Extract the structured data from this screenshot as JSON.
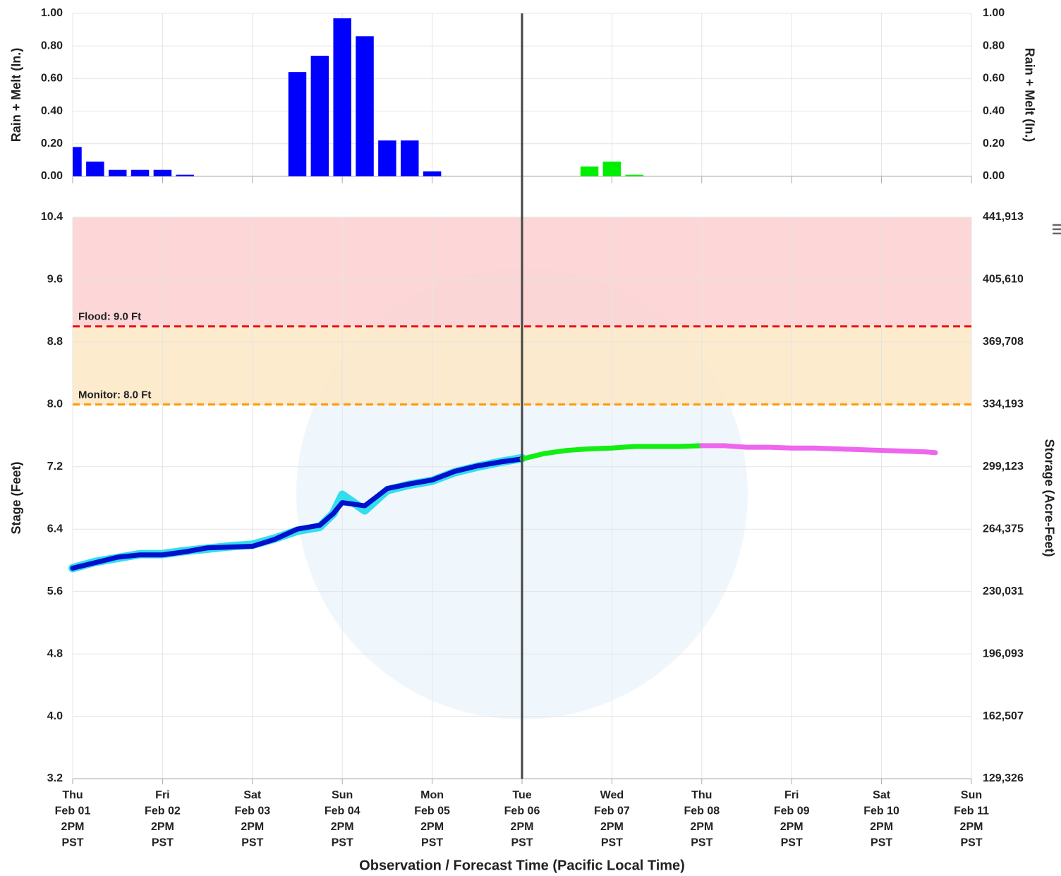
{
  "chart_data": [
    {
      "type": "bar",
      "ylabel": "Rain + Melt (In.)",
      "y2label": "Rain + Melt (In.)",
      "xlim": [
        0,
        10
      ],
      "xticks": [
        0,
        1,
        2,
        3,
        4,
        5,
        6,
        7,
        8,
        9,
        10
      ],
      "ylim": [
        0,
        1
      ],
      "yticks": [
        {
          "value": 0,
          "label": "0.00"
        },
        {
          "value": 0.2,
          "label": "0.20"
        },
        {
          "value": 0.4,
          "label": "0.40"
        },
        {
          "value": 0.6,
          "label": "0.60"
        },
        {
          "value": 0.8,
          "label": "0.80"
        },
        {
          "value": 1,
          "label": "1.00"
        }
      ],
      "y2lim": [
        0,
        1
      ],
      "y2ticks": [
        {
          "value": 0,
          "label": "0.00"
        },
        {
          "value": 0.2,
          "label": "0.20"
        },
        {
          "value": 0.4,
          "label": "0.40"
        },
        {
          "value": 0.6,
          "label": "0.60"
        },
        {
          "value": 0.8,
          "label": "0.80"
        },
        {
          "value": 1,
          "label": "1.00"
        }
      ],
      "grid": true,
      "series": [
        {
          "color": "#0000ff",
          "x": [
            0,
            0.25,
            0.5,
            0.75,
            1,
            1.25,
            2.5,
            2.75,
            3,
            3.25,
            3.5,
            3.75,
            4
          ],
          "values": [
            0.18,
            0.09,
            0.04,
            0.04,
            0.04,
            0.01,
            0.64,
            0.74,
            0.97,
            0.86,
            0.22,
            0.22,
            0.03
          ]
        },
        {
          "color": "#00ee00",
          "x": [
            5.75,
            6,
            6.25
          ],
          "values": [
            0.06,
            0.09,
            0.01
          ]
        }
      ]
    },
    {
      "type": "line",
      "xlabel": "Observation / Forecast Time (Pacific Local Time)",
      "ylabel": "Stage (Feet)",
      "y2label": "Storage (Acre-Feet)",
      "xlim": [
        0,
        10
      ],
      "xticks": [
        {
          "value": 0,
          "label": [
            "Thu",
            "Feb 01",
            "2PM",
            "PST"
          ]
        },
        {
          "value": 1,
          "label": [
            "Fri",
            "Feb 02",
            "2PM",
            "PST"
          ]
        },
        {
          "value": 2,
          "label": [
            "Sat",
            "Feb 03",
            "2PM",
            "PST"
          ]
        },
        {
          "value": 3,
          "label": [
            "Sun",
            "Feb 04",
            "2PM",
            "PST"
          ]
        },
        {
          "value": 4,
          "label": [
            "Mon",
            "Feb 05",
            "2PM",
            "PST"
          ]
        },
        {
          "value": 5,
          "label": [
            "Tue",
            "Feb 06",
            "2PM",
            "PST"
          ]
        },
        {
          "value": 6,
          "label": [
            "Wed",
            "Feb 07",
            "2PM",
            "PST"
          ]
        },
        {
          "value": 7,
          "label": [
            "Thu",
            "Feb 08",
            "2PM",
            "PST"
          ]
        },
        {
          "value": 8,
          "label": [
            "Fri",
            "Feb 09",
            "2PM",
            "PST"
          ]
        },
        {
          "value": 9,
          "label": [
            "Sat",
            "Feb 10",
            "2PM",
            "PST"
          ]
        },
        {
          "value": 10,
          "label": [
            "Sun",
            "Feb 11",
            "2PM",
            "PST"
          ]
        }
      ],
      "ylim": [
        3.2,
        10.4
      ],
      "yticks": [
        3.2,
        {
          "value": 4,
          "label": "4.0"
        },
        4.8,
        5.6,
        6.4,
        7.2,
        {
          "value": 8,
          "label": "8.0"
        },
        8.8,
        9.6,
        10.4
      ],
      "y2ticks": [
        {
          "value": 129326,
          "label": "129,326"
        },
        {
          "value": 162507,
          "label": "162,507"
        },
        {
          "value": 196093,
          "label": "196,093"
        },
        {
          "value": 230031,
          "label": "230,031"
        },
        {
          "value": 264375,
          "label": "264,375"
        },
        {
          "value": 299123,
          "label": "299,123"
        },
        {
          "value": 334193,
          "label": "334,193"
        },
        {
          "value": 369708,
          "label": "369,708"
        },
        {
          "value": 405610,
          "label": "405,610"
        },
        {
          "value": 441913,
          "label": "441,913"
        }
      ],
      "grid": true,
      "thresholds": [
        {
          "label": "Monitor: 8.0 Ft",
          "value": 8,
          "color": "#ff9900",
          "band_color": "#fde7c6"
        },
        {
          "label": "Flood: 9.0 Ft",
          "value": 9,
          "color": "#ee1111",
          "band_color": "#fdd0d0"
        }
      ],
      "vline": 5,
      "series": [
        {
          "color": "#33ddee",
          "x": [
            0,
            0.25,
            0.5,
            0.75,
            1,
            1.25,
            1.5,
            1.75,
            2,
            2.25,
            2.5,
            2.75,
            2.9,
            3,
            3.25,
            3.5,
            3.75,
            4,
            4.25,
            4.5,
            4.75,
            5
          ],
          "values": [
            5.9,
            5.98,
            6.03,
            6.08,
            6.08,
            6.12,
            6.15,
            6.18,
            6.2,
            6.28,
            6.38,
            6.43,
            6.6,
            6.84,
            6.64,
            6.9,
            6.97,
            7.02,
            7.13,
            7.2,
            7.26,
            7.31
          ]
        },
        {
          "color": "#0010cc",
          "x": [
            0,
            0.25,
            0.5,
            0.75,
            1,
            1.25,
            1.5,
            1.75,
            2,
            2.25,
            2.5,
            2.75,
            2.9,
            3,
            3.25,
            3.5,
            3.75,
            4,
            4.25,
            4.5,
            4.75,
            5
          ],
          "values": [
            5.9,
            5.97,
            6.04,
            6.07,
            6.07,
            6.11,
            6.16,
            6.17,
            6.18,
            6.27,
            6.4,
            6.45,
            6.6,
            6.74,
            6.7,
            6.92,
            6.98,
            7.03,
            7.14,
            7.21,
            7.26,
            7.3
          ]
        },
        {
          "color": "#11ee11",
          "x": [
            5,
            5.25,
            5.5,
            5.75,
            6,
            6.25,
            6.5,
            6.75,
            7
          ],
          "values": [
            7.3,
            7.37,
            7.41,
            7.43,
            7.44,
            7.46,
            7.46,
            7.46,
            7.47
          ]
        },
        {
          "color": "#ee66ee",
          "x": [
            7,
            7.25,
            7.5,
            7.75,
            8,
            8.25,
            8.5,
            8.75,
            9,
            9.25,
            9.5,
            9.6
          ],
          "values": [
            7.47,
            7.47,
            7.45,
            7.45,
            7.44,
            7.44,
            7.43,
            7.42,
            7.41,
            7.4,
            7.39,
            7.38
          ]
        }
      ]
    }
  ]
}
